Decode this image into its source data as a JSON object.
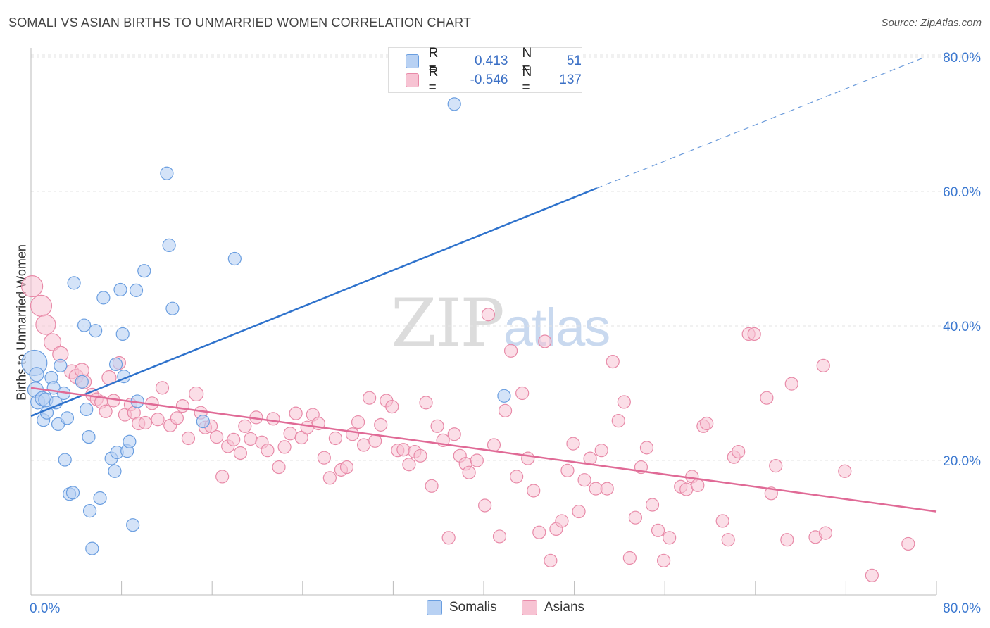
{
  "header": {
    "title": "SOMALI VS ASIAN BIRTHS TO UNMARRIED WOMEN CORRELATION CHART",
    "source": "Source: ZipAtlas.com"
  },
  "watermark": {
    "zip": "ZIP",
    "atlas": "atlas"
  },
  "legend": {
    "rows": [
      {
        "r_label": "R =",
        "r_value": "0.413",
        "n_label": "N =",
        "n_value": "51"
      },
      {
        "r_label": "R =",
        "r_value": "-0.546",
        "n_label": "N =",
        "n_value": "137"
      }
    ]
  },
  "bottom_legend": {
    "somalis": "Somalis",
    "asians": "Asians"
  },
  "colors": {
    "somali_fill": "#b8d1f3",
    "somali_stroke": "#6a9ee0",
    "somali_line": "#2e72cc",
    "asian_fill": "#f7c3d3",
    "asian_stroke": "#e88aa8",
    "asian_line": "#e06a96",
    "grid": "#e3e3e3",
    "axis_label": "#3b78d0"
  },
  "chart_data": {
    "type": "scatter",
    "title": "SOMALI VS ASIAN BIRTHS TO UNMARRIED WOMEN CORRELATION CHART",
    "xlabel": "",
    "ylabel": "Births to Unmarried Women",
    "xlim": [
      0,
      80
    ],
    "ylim": [
      0,
      82
    ],
    "x_tick_labels": [
      "0.0%",
      "80.0%"
    ],
    "y_tick_labels": [
      "20.0%",
      "40.0%",
      "60.0%",
      "80.0%"
    ],
    "y_ticks": [
      20,
      40,
      60,
      80
    ],
    "grid": true,
    "legend_position": "top-center",
    "series": [
      {
        "name": "Somalis",
        "r": 0.413,
        "n": 51,
        "trend": {
          "x0": 0,
          "y0": 26.6,
          "x1": 50,
          "y1": 60.5,
          "dashed_to_x": 79,
          "dashed_to_y": 80
        },
        "points": [
          [
            0.3,
            34.5,
            18
          ],
          [
            0.4,
            30.5,
            11
          ],
          [
            0.5,
            32.8,
            10
          ],
          [
            0.6,
            28.7,
            10
          ],
          [
            1.0,
            29.2,
            10
          ],
          [
            1.3,
            29.0,
            10
          ],
          [
            1.1,
            26.0,
            9
          ],
          [
            1.4,
            27.1,
            9
          ],
          [
            1.8,
            32.3,
            9
          ],
          [
            2.0,
            30.8,
            9
          ],
          [
            2.2,
            28.6,
            9
          ],
          [
            2.4,
            25.4,
            9
          ],
          [
            2.6,
            34.1,
            9
          ],
          [
            2.9,
            30.0,
            9
          ],
          [
            3.0,
            20.1,
            9
          ],
          [
            3.2,
            26.3,
            9
          ],
          [
            3.4,
            15.0,
            9
          ],
          [
            3.7,
            15.2,
            9
          ],
          [
            3.8,
            46.4,
            9
          ],
          [
            4.5,
            31.7,
            9
          ],
          [
            4.7,
            40.1,
            9
          ],
          [
            4.9,
            27.6,
            9
          ],
          [
            5.1,
            23.5,
            9
          ],
          [
            5.2,
            12.5,
            9
          ],
          [
            5.4,
            6.9,
            9
          ],
          [
            5.7,
            39.3,
            9
          ],
          [
            6.1,
            14.4,
            9
          ],
          [
            6.4,
            44.2,
            9
          ],
          [
            7.1,
            20.3,
            9
          ],
          [
            7.4,
            18.4,
            9
          ],
          [
            7.5,
            34.3,
            9
          ],
          [
            7.6,
            21.2,
            9
          ],
          [
            7.9,
            45.4,
            9
          ],
          [
            8.1,
            38.8,
            9
          ],
          [
            8.2,
            32.5,
            9
          ],
          [
            8.5,
            21.4,
            9
          ],
          [
            8.7,
            22.8,
            9
          ],
          [
            9.0,
            10.4,
            9
          ],
          [
            9.3,
            45.3,
            9
          ],
          [
            9.4,
            28.8,
            9
          ],
          [
            10.0,
            48.2,
            9
          ],
          [
            12.0,
            62.7,
            9
          ],
          [
            12.2,
            52.0,
            9
          ],
          [
            12.5,
            42.6,
            9
          ],
          [
            15.2,
            25.8,
            9
          ],
          [
            18.0,
            50.0,
            9
          ],
          [
            37.4,
            73.0,
            9
          ],
          [
            41.8,
            29.6,
            9
          ]
        ]
      },
      {
        "name": "Asians",
        "r": -0.546,
        "n": 137,
        "trend": {
          "x0": 0,
          "y0": 30.8,
          "x1": 80,
          "y1": 12.4
        },
        "points": [
          [
            0.1,
            45.9,
            15
          ],
          [
            0.9,
            43.0,
            15
          ],
          [
            1.3,
            40.2,
            14
          ],
          [
            1.9,
            37.6,
            12
          ],
          [
            2.6,
            35.8,
            11
          ],
          [
            3.6,
            33.2,
            10
          ],
          [
            4.0,
            32.5,
            10
          ],
          [
            4.5,
            33.4,
            10
          ],
          [
            4.7,
            31.7,
            10
          ],
          [
            5.4,
            29.8,
            9
          ],
          [
            5.8,
            29.1,
            9
          ],
          [
            6.2,
            28.7,
            9
          ],
          [
            6.6,
            27.3,
            9
          ],
          [
            6.9,
            32.3,
            10
          ],
          [
            7.3,
            28.9,
            9
          ],
          [
            7.8,
            34.5,
            9
          ],
          [
            8.3,
            26.8,
            9
          ],
          [
            8.8,
            28.3,
            9
          ],
          [
            9.1,
            27.1,
            9
          ],
          [
            9.5,
            25.5,
            9
          ],
          [
            10.1,
            25.6,
            9
          ],
          [
            10.7,
            28.5,
            9
          ],
          [
            11.2,
            26.1,
            9
          ],
          [
            11.6,
            30.8,
            9
          ],
          [
            12.3,
            25.2,
            9
          ],
          [
            12.9,
            26.3,
            9
          ],
          [
            13.4,
            28.1,
            9
          ],
          [
            13.9,
            23.3,
            9
          ],
          [
            14.6,
            29.9,
            10
          ],
          [
            15.0,
            27.1,
            9
          ],
          [
            15.4,
            24.9,
            9
          ],
          [
            15.9,
            25.1,
            9
          ],
          [
            16.4,
            23.5,
            9
          ],
          [
            16.9,
            17.6,
            9
          ],
          [
            17.4,
            22.1,
            9
          ],
          [
            17.9,
            23.1,
            9
          ],
          [
            18.5,
            21.1,
            9
          ],
          [
            18.9,
            25.1,
            9
          ],
          [
            19.4,
            23.2,
            9
          ],
          [
            19.9,
            26.4,
            9
          ],
          [
            20.4,
            22.7,
            9
          ],
          [
            20.9,
            21.5,
            9
          ],
          [
            21.4,
            26.2,
            9
          ],
          [
            21.9,
            19.0,
            9
          ],
          [
            22.4,
            22.0,
            9
          ],
          [
            22.9,
            24.0,
            9
          ],
          [
            23.4,
            27.0,
            9
          ],
          [
            23.9,
            23.4,
            9
          ],
          [
            24.4,
            24.9,
            9
          ],
          [
            24.9,
            26.8,
            9
          ],
          [
            25.4,
            25.5,
            9
          ],
          [
            25.9,
            20.4,
            9
          ],
          [
            26.4,
            17.4,
            9
          ],
          [
            26.9,
            23.3,
            9
          ],
          [
            27.4,
            18.6,
            9
          ],
          [
            27.9,
            19.0,
            9
          ],
          [
            28.4,
            23.9,
            9
          ],
          [
            28.9,
            25.7,
            9
          ],
          [
            29.4,
            22.3,
            9
          ],
          [
            29.9,
            29.3,
            9
          ],
          [
            30.4,
            22.9,
            9
          ],
          [
            30.9,
            25.3,
            9
          ],
          [
            31.4,
            28.9,
            9
          ],
          [
            31.9,
            28.0,
            9
          ],
          [
            32.4,
            21.5,
            9
          ],
          [
            32.9,
            21.6,
            9
          ],
          [
            33.4,
            19.4,
            9
          ],
          [
            33.9,
            21.3,
            9
          ],
          [
            34.4,
            20.7,
            9
          ],
          [
            34.9,
            28.6,
            9
          ],
          [
            35.4,
            16.2,
            9
          ],
          [
            35.9,
            25.1,
            9
          ],
          [
            36.4,
            23.0,
            9
          ],
          [
            36.9,
            8.5,
            9
          ],
          [
            37.4,
            23.9,
            9
          ],
          [
            37.9,
            20.7,
            9
          ],
          [
            38.4,
            19.5,
            9
          ],
          [
            38.7,
            18.2,
            9
          ],
          [
            39.4,
            20.0,
            9
          ],
          [
            40.1,
            13.3,
            9
          ],
          [
            40.4,
            41.7,
            9
          ],
          [
            40.9,
            22.3,
            9
          ],
          [
            41.4,
            8.7,
            9
          ],
          [
            41.9,
            27.4,
            9
          ],
          [
            42.4,
            36.3,
            9
          ],
          [
            42.9,
            17.6,
            9
          ],
          [
            43.4,
            30.0,
            9
          ],
          [
            43.9,
            20.3,
            9
          ],
          [
            44.4,
            15.5,
            9
          ],
          [
            44.9,
            9.3,
            9
          ],
          [
            45.4,
            37.7,
            9
          ],
          [
            45.9,
            5.1,
            9
          ],
          [
            46.4,
            9.8,
            9
          ],
          [
            46.9,
            11.0,
            9
          ],
          [
            47.4,
            18.5,
            9
          ],
          [
            47.9,
            22.5,
            9
          ],
          [
            48.4,
            12.4,
            9
          ],
          [
            48.9,
            17.1,
            9
          ],
          [
            49.4,
            20.3,
            9
          ],
          [
            49.9,
            15.8,
            9
          ],
          [
            50.4,
            21.5,
            9
          ],
          [
            50.9,
            15.8,
            9
          ],
          [
            51.4,
            34.7,
            9
          ],
          [
            51.9,
            25.9,
            9
          ],
          [
            52.4,
            28.7,
            9
          ],
          [
            52.9,
            5.5,
            9
          ],
          [
            53.4,
            11.5,
            9
          ],
          [
            53.9,
            19.0,
            9
          ],
          [
            54.4,
            21.9,
            9
          ],
          [
            54.9,
            13.4,
            9
          ],
          [
            55.4,
            9.6,
            9
          ],
          [
            55.9,
            5.1,
            9
          ],
          [
            56.4,
            8.5,
            9
          ],
          [
            57.4,
            16.1,
            9
          ],
          [
            57.9,
            15.7,
            9
          ],
          [
            58.4,
            17.6,
            9
          ],
          [
            58.9,
            16.3,
            9
          ],
          [
            59.4,
            25.1,
            9
          ],
          [
            59.7,
            25.5,
            9
          ],
          [
            61.1,
            11.0,
            9
          ],
          [
            61.6,
            8.2,
            9
          ],
          [
            62.1,
            20.5,
            9
          ],
          [
            62.5,
            21.3,
            9
          ],
          [
            63.4,
            38.8,
            9
          ],
          [
            63.9,
            38.8,
            9
          ],
          [
            65.0,
            29.3,
            9
          ],
          [
            65.4,
            15.1,
            9
          ],
          [
            65.8,
            19.2,
            9
          ],
          [
            66.8,
            8.2,
            9
          ],
          [
            67.2,
            31.4,
            9
          ],
          [
            69.3,
            8.6,
            9
          ],
          [
            70.0,
            34.1,
            9
          ],
          [
            70.2,
            9.2,
            9
          ],
          [
            71.9,
            18.4,
            9
          ],
          [
            74.3,
            2.9,
            9
          ],
          [
            77.5,
            7.6,
            9
          ]
        ]
      }
    ]
  }
}
